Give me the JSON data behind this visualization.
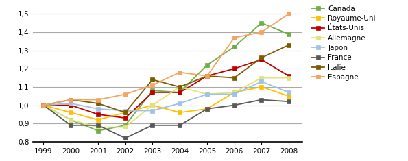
{
  "years": [
    1999,
    2000,
    2001,
    2002,
    2003,
    2004,
    2005,
    2006,
    2007,
    2008
  ],
  "series": {
    "Canada": {
      "values": [
        1.0,
        0.92,
        0.86,
        0.89,
        1.08,
        1.07,
        1.22,
        1.32,
        1.45,
        1.39
      ],
      "color": "#70ad47",
      "marker": "s"
    },
    "Royaume-Uni": {
      "values": [
        1.0,
        0.96,
        0.92,
        0.96,
        1.0,
        0.96,
        0.98,
        1.07,
        1.1,
        1.05
      ],
      "color": "#ffc000",
      "marker": "s"
    },
    "États-Unis": {
      "values": [
        1.0,
        1.0,
        0.95,
        0.93,
        1.07,
        1.07,
        1.16,
        1.2,
        1.25,
        1.16
      ],
      "color": "#c00000",
      "marker": "s"
    },
    "Allemagne": {
      "values": [
        1.0,
        0.92,
        0.88,
        0.88,
        1.0,
        1.1,
        1.06,
        1.07,
        1.15,
        1.15
      ],
      "color": "#e2e27a",
      "marker": "s"
    },
    "Japon": {
      "values": [
        1.0,
        1.01,
        0.98,
        0.97,
        0.97,
        1.01,
        1.06,
        1.06,
        1.13,
        1.07
      ],
      "color": "#9dc3e6",
      "marker": "s"
    },
    "France": {
      "values": [
        1.0,
        0.89,
        0.89,
        0.82,
        0.89,
        0.89,
        0.98,
        1.0,
        1.03,
        1.02
      ],
      "color": "#595959",
      "marker": "s"
    },
    "Italie": {
      "values": [
        1.0,
        1.03,
        1.01,
        0.96,
        1.14,
        1.1,
        1.16,
        1.15,
        1.26,
        1.33
      ],
      "color": "#7b5b00",
      "marker": "s"
    },
    "Espagne": {
      "values": [
        1.0,
        1.03,
        1.03,
        1.06,
        1.11,
        1.18,
        1.16,
        1.37,
        1.4,
        1.5
      ],
      "color": "#f4a460",
      "marker": "s"
    }
  },
  "ylim": [
    0.8,
    1.55
  ],
  "yticks": [
    0.8,
    0.9,
    1.0,
    1.1,
    1.2,
    1.3,
    1.4,
    1.5
  ],
  "ytick_labels": [
    "0,8",
    "0,9",
    "1,0",
    "1,1",
    "1,2",
    "1,3",
    "1,4",
    "1,5"
  ],
  "background_color": "#ffffff",
  "grid_color": "#aaaaaa",
  "legend_order": [
    "Canada",
    "Royaume-Uni",
    "États-Unis",
    "Allemagne",
    "Japon",
    "France",
    "Italie",
    "Espagne"
  ]
}
